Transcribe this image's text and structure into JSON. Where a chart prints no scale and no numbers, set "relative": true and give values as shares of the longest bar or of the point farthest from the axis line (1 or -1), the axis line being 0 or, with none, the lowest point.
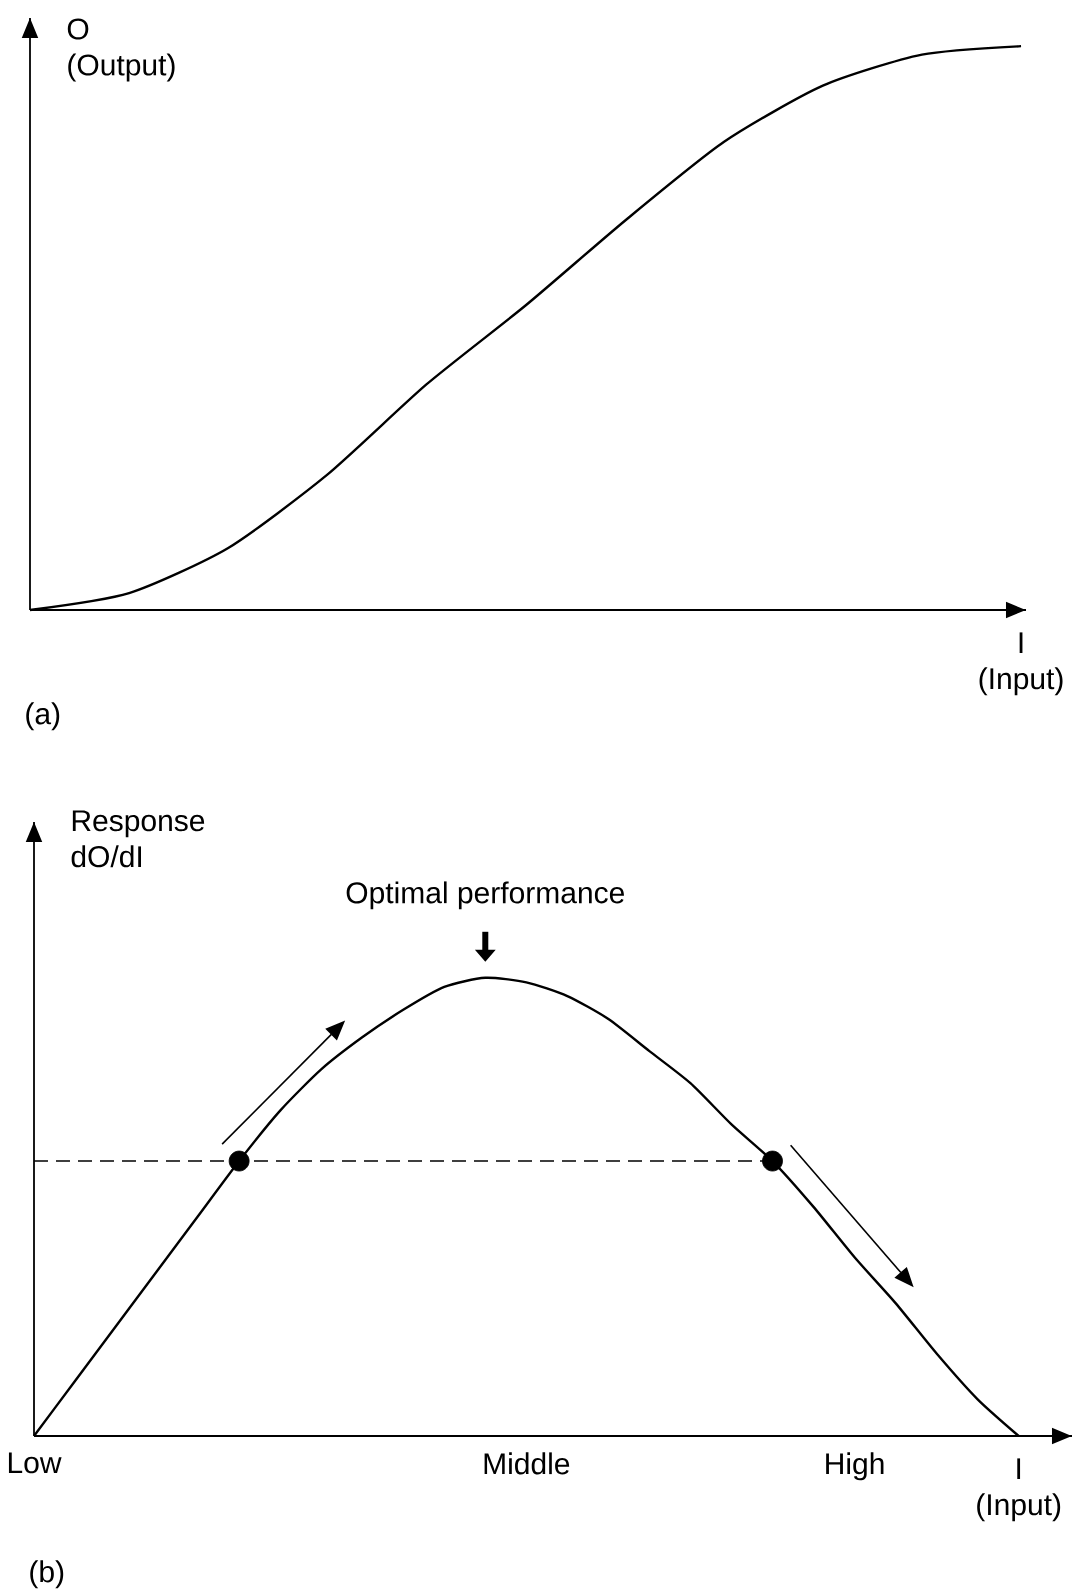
{
  "chart_data": [
    {
      "type": "line",
      "relative": true,
      "tick_labels": false,
      "xlabel": "I (Input)",
      "ylabel": "O (Output)",
      "annotations": [
        "(a)"
      ],
      "categories": [
        null,
        null,
        null,
        null,
        null,
        null,
        null,
        null,
        null,
        null,
        null
      ],
      "series": [
        {
          "color": "#000000",
          "values": [
            0,
            0.03,
            0.11,
            0.24,
            0.4,
            0.54,
            0.69,
            0.83,
            0.93,
            0.985,
            1
          ]
        }
      ]
    },
    {
      "type": "line",
      "relative": true,
      "tick_labels": "x",
      "xlabel": "I (Input)",
      "ylabel": "Response dO/dI",
      "annotations": [
        {
          "text": "Optimal performance",
          "y": 1
        },
        "(b)"
      ],
      "categories": [
        "Low",
        null,
        null,
        null,
        null,
        null,
        null,
        null,
        null,
        null,
        null,
        null,
        "Middle",
        null,
        null,
        null,
        null,
        null,
        null,
        null,
        "High",
        null,
        null,
        null,
        null
      ],
      "ref_lines": [
        {
          "axis": "y",
          "value": 0.6,
          "line_style": "dashed",
          "color": "#000000"
        }
      ],
      "series": [
        {
          "color": "#000000",
          "values": [
            0,
            0.12,
            0.24,
            0.36,
            0.48,
            0.6,
            0.71,
            0.8,
            0.87,
            0.93,
            0.98,
            1,
            0.99,
            0.96,
            0.91,
            0.84,
            0.77,
            0.68,
            0.6,
            0.5,
            0.39,
            0.29,
            0.18,
            0.08,
            0
          ]
        },
        {
          "type": "scatter",
          "marker": "circle",
          "color": "#000000",
          "values": [
            null,
            null,
            null,
            null,
            null,
            0.6,
            null,
            null,
            null,
            null,
            null,
            null,
            null,
            null,
            null,
            null,
            null,
            null,
            0.6,
            null,
            null,
            null,
            null,
            null,
            null
          ]
        }
      ]
    }
  ]
}
